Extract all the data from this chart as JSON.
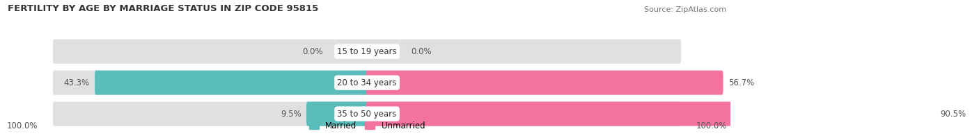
{
  "title": "FERTILITY BY AGE BY MARRIAGE STATUS IN ZIP CODE 95815",
  "source": "Source: ZipAtlas.com",
  "rows": [
    {
      "label": "15 to 19 years",
      "married_pct": 0.0,
      "unmarried_pct": 0.0,
      "married_display": "0.0%",
      "unmarried_display": "0.0%"
    },
    {
      "label": "20 to 34 years",
      "married_pct": 43.3,
      "unmarried_pct": 56.7,
      "married_display": "43.3%",
      "unmarried_display": "56.7%"
    },
    {
      "label": "35 to 50 years",
      "married_pct": 9.5,
      "unmarried_pct": 90.5,
      "married_display": "9.5%",
      "unmarried_display": "90.5%"
    }
  ],
  "married_color": "#5bbcbc",
  "unmarried_color": "#f472a0",
  "bar_bg_color": "#e0e0e0",
  "title_fontsize": 9.5,
  "label_fontsize": 8.5,
  "tick_fontsize": 8.5,
  "source_fontsize": 8,
  "left_axis_label": "100.0%",
  "right_axis_label": "100.0%",
  "background_color": "#ffffff"
}
